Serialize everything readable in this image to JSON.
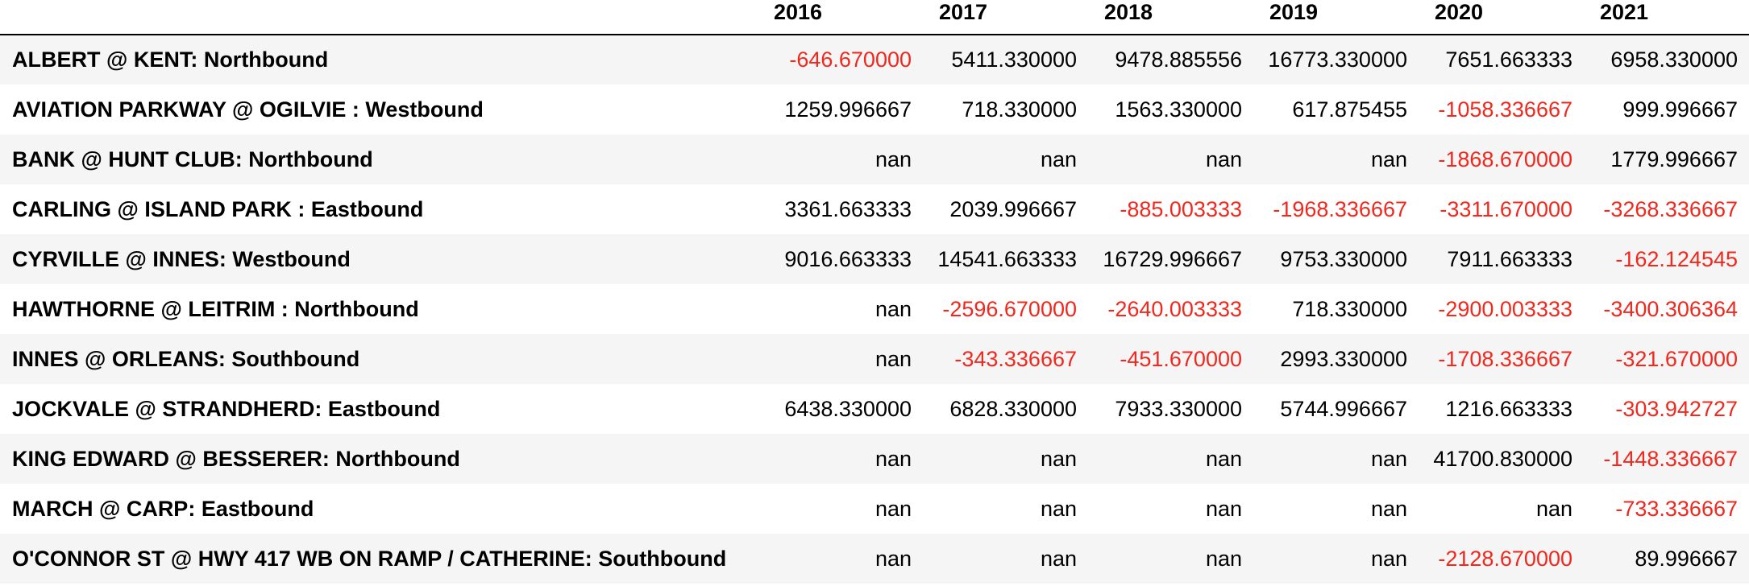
{
  "table": {
    "columns": [
      "",
      "2016",
      "2017",
      "2018",
      "2019",
      "2020",
      "2021"
    ],
    "rows": [
      {
        "label": "ALBERT @ KENT: Northbound",
        "values": [
          "-646.670000",
          "5411.330000",
          "9478.885556",
          "16773.330000",
          "7651.663333",
          "6958.330000"
        ]
      },
      {
        "label": "AVIATION PARKWAY @ OGILVIE : Westbound",
        "values": [
          "1259.996667",
          "718.330000",
          "1563.330000",
          "617.875455",
          "-1058.336667",
          "999.996667"
        ]
      },
      {
        "label": "BANK @ HUNT CLUB: Northbound",
        "values": [
          "nan",
          "nan",
          "nan",
          "nan",
          "-1868.670000",
          "1779.996667"
        ]
      },
      {
        "label": "CARLING @ ISLAND PARK : Eastbound",
        "values": [
          "3361.663333",
          "2039.996667",
          "-885.003333",
          "-1968.336667",
          "-3311.670000",
          "-3268.336667"
        ]
      },
      {
        "label": "CYRVILLE @ INNES: Westbound",
        "values": [
          "9016.663333",
          "14541.663333",
          "16729.996667",
          "9753.330000",
          "7911.663333",
          "-162.124545"
        ]
      },
      {
        "label": "HAWTHORNE @ LEITRIM : Northbound",
        "values": [
          "nan",
          "-2596.670000",
          "-2640.003333",
          "718.330000",
          "-2900.003333",
          "-3400.306364"
        ]
      },
      {
        "label": "INNES @ ORLEANS: Southbound",
        "values": [
          "nan",
          "-343.336667",
          "-451.670000",
          "2993.330000",
          "-1708.336667",
          "-321.670000"
        ]
      },
      {
        "label": "JOCKVALE @ STRANDHERD: Eastbound",
        "values": [
          "6438.330000",
          "6828.330000",
          "7933.330000",
          "5744.996667",
          "1216.663333",
          "-303.942727"
        ]
      },
      {
        "label": "KING EDWARD @ BESSERER: Northbound",
        "values": [
          "nan",
          "nan",
          "nan",
          "nan",
          "41700.830000",
          "-1448.336667"
        ]
      },
      {
        "label": "MARCH @ CARP: Eastbound",
        "values": [
          "nan",
          "nan",
          "nan",
          "nan",
          "nan",
          "-733.336667"
        ]
      },
      {
        "label": "O'CONNOR ST @ HWY 417 WB ON RAMP / CATHERINE: Southbound",
        "values": [
          "nan",
          "nan",
          "nan",
          "nan",
          "-2128.670000",
          "89.996667"
        ]
      }
    ]
  },
  "colors": {
    "negative": "#f0281e",
    "stripe": "#f5f5f5"
  }
}
